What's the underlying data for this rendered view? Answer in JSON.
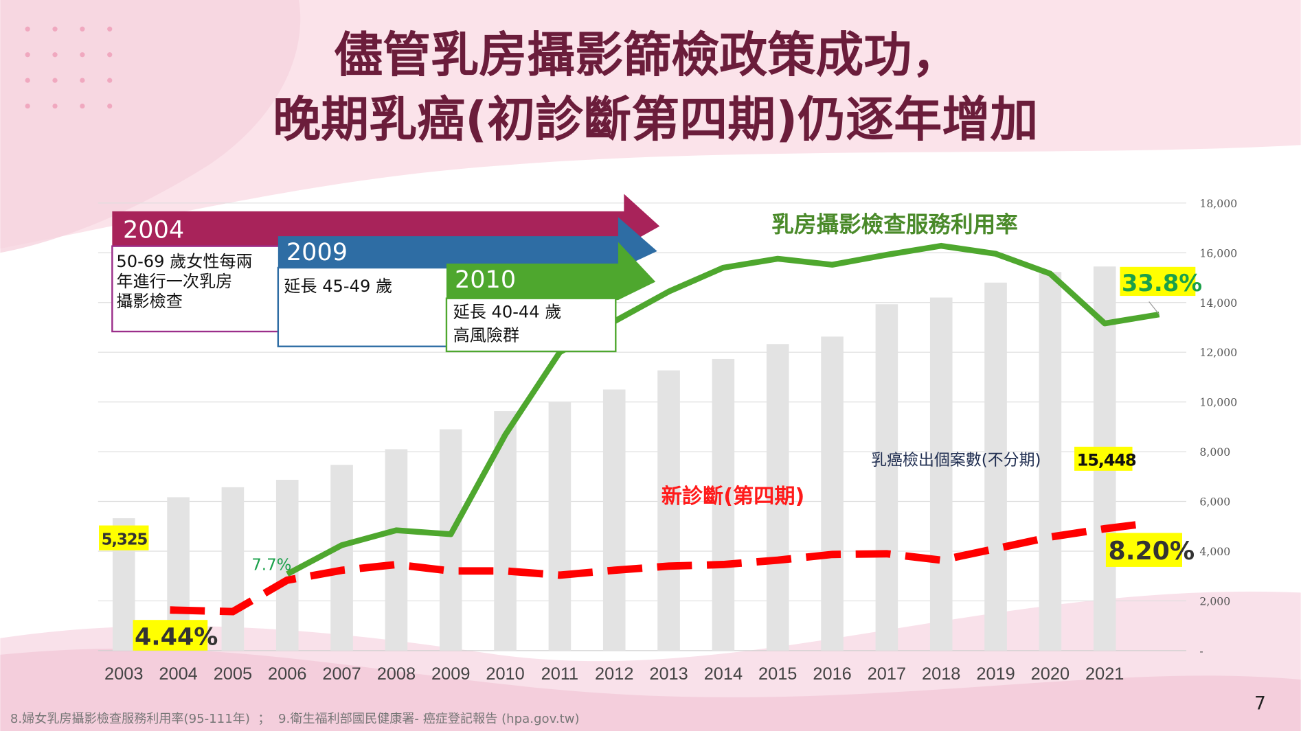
{
  "title": {
    "line1": "儘管乳房攝影篩檢政策成功，",
    "line2": "晚期乳癌(初診斷第四期)仍逐年增加"
  },
  "policies": [
    {
      "year": "2004",
      "lines": [
        "50-69 歲女性每兩",
        "年進行一次乳房",
        "攝影檢查"
      ],
      "color": "#a8235a"
    },
    {
      "year": "2009",
      "lines": [
        "延長 45-49 歲"
      ],
      "color": "#2e6da4"
    },
    {
      "year": "2010",
      "lines": [
        "延長 40-44 歲",
        "高風險群"
      ],
      "color": "#4ea72e"
    }
  ],
  "labels": {
    "utilization": "乳房攝影檢查服務利用率",
    "stage4": "新診斷(第四期)",
    "cases": "乳癌檢出個案數(不分期)",
    "cases_value": "15,448",
    "first_cases": "5,325",
    "first_stage4": "4.44%",
    "first_util": "7.7%",
    "last_util": "33.8%",
    "last_stage4": "8.20%"
  },
  "colors": {
    "bars": "#e3e3e3",
    "utilization": "#4ea72e",
    "stage4": "#ff0000",
    "highlight": "#ffff00",
    "title": "#6b1d3b"
  },
  "footer": "8.婦女乳房攝影檢查服務利用率(95-111年)  ；  9.衛生福利部國民健康署- 癌症登記報告 (hpa.gov.tw)",
  "page_number": "7",
  "chart_data": {
    "type": "bar+line",
    "categories": [
      "2003",
      "2004",
      "2005",
      "2006",
      "2007",
      "2008",
      "2009",
      "2010",
      "2011",
      "2012",
      "2013",
      "2014",
      "2015",
      "2016",
      "2017",
      "2018",
      "2019",
      "2020",
      "2021"
    ],
    "y_ticks": [
      "18,000",
      "16,000",
      "14,000",
      "12,000",
      "10,000",
      "8,000",
      "6,000",
      "4,000",
      "2,000",
      "-"
    ],
    "ylim": [
      0,
      18000
    ],
    "grid": true,
    "series": [
      {
        "name": "乳癌檢出個案數(不分期)",
        "type": "bar",
        "x": [
          2003,
          2004,
          2005,
          2006,
          2007,
          2008,
          2009,
          2010,
          2011,
          2012,
          2013,
          2014,
          2015,
          2016,
          2017,
          2018,
          2019,
          2020,
          2021
        ],
        "values": [
          5325,
          6170,
          6570,
          6870,
          7470,
          8100,
          8900,
          9630,
          10000,
          10500,
          11270,
          11730,
          12330,
          12630,
          13930,
          14200,
          14800,
          15230,
          15448
        ]
      },
      {
        "name": "乳房攝影檢查服務利用率",
        "type": "line",
        "unit": "%",
        "x": [
          2006,
          2007,
          2008,
          2009,
          2010,
          2011,
          2012,
          2013,
          2014,
          2015,
          2016,
          2017,
          2018,
          2019,
          2020,
          2021,
          2022
        ],
        "values": [
          7.7,
          10.6,
          12.1,
          11.7,
          21.7,
          30.0,
          33.1,
          36.1,
          38.5,
          39.4,
          38.8,
          39.8,
          40.7,
          39.9,
          37.9,
          32.9,
          33.8
        ]
      },
      {
        "name": "新診斷(第四期)",
        "type": "dashed-line",
        "unit": "%",
        "x": [
          2004,
          2005,
          2006,
          2007,
          2008,
          2009,
          2010,
          2011,
          2012,
          2013,
          2014,
          2015,
          2016,
          2017,
          2018,
          2019,
          2020,
          2021,
          2022
        ],
        "values": [
          4.44,
          4.37,
          5.74,
          6.17,
          6.42,
          6.14,
          6.14,
          5.96,
          6.17,
          6.35,
          6.42,
          6.61,
          6.86,
          6.89,
          6.61,
          7.11,
          7.62,
          7.98,
          8.2
        ]
      }
    ]
  }
}
